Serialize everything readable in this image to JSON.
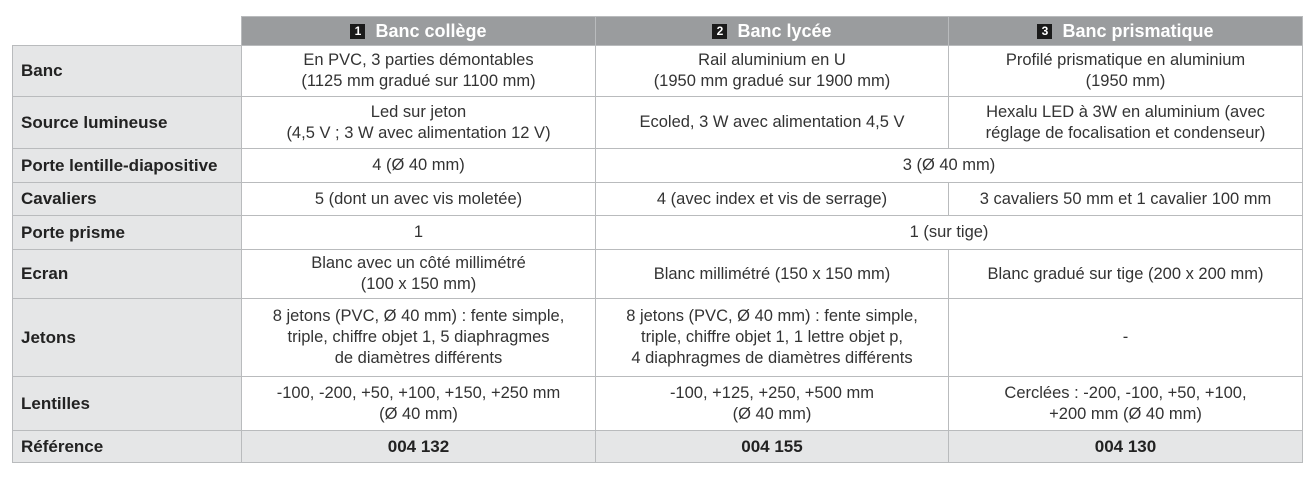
{
  "headers": [
    {
      "num": "1",
      "label": "Banc collège"
    },
    {
      "num": "2",
      "label": "Banc lycée"
    },
    {
      "num": "3",
      "label": "Banc prismatique"
    }
  ],
  "rows": {
    "banc": {
      "label": "Banc",
      "c1": [
        "En PVC, 3 parties démontables",
        "(1125 mm gradué sur 1100 mm)"
      ],
      "c2": [
        "Rail aluminium en U",
        "(1950 mm gradué sur 1900 mm)"
      ],
      "c3": [
        "Profilé prismatique en aluminium",
        "(1950 mm)"
      ]
    },
    "source": {
      "label": "Source lumineuse",
      "c1": [
        "Led sur jeton",
        "(4,5 V ; 3 W avec alimentation 12 V)"
      ],
      "c2": [
        "Ecoled, 3 W avec alimentation 4,5 V"
      ],
      "c3": [
        "Hexalu LED à 3W en aluminium (avec",
        "réglage de focalisation et condenseur)"
      ]
    },
    "porte_lentille": {
      "label": "Porte lentille-diapositive",
      "c1": [
        "4 (Ø 40 mm)"
      ],
      "c23": [
        "3 (Ø 40 mm)"
      ]
    },
    "cavaliers": {
      "label": "Cavaliers",
      "c1": [
        "5 (dont un avec vis moletée)"
      ],
      "c2": [
        "4 (avec index et vis de serrage)"
      ],
      "c3": [
        "3 cavaliers 50 mm et 1 cavalier 100 mm"
      ]
    },
    "porte_prisme": {
      "label": "Porte prisme",
      "c1": [
        "1"
      ],
      "c23": [
        "1 (sur tige)"
      ]
    },
    "ecran": {
      "label": "Ecran",
      "c1": [
        "Blanc avec un côté millimétré",
        "(100 x 150 mm)"
      ],
      "c2": [
        "Blanc millimétré (150 x 150 mm)"
      ],
      "c3": [
        "Blanc gradué sur tige (200 x 200 mm)"
      ]
    },
    "jetons": {
      "label": "Jetons",
      "c1": [
        "8 jetons (PVC, Ø 40 mm) : fente simple,",
        "triple, chiffre objet 1, 5 diaphragmes",
        "de diamètres différents"
      ],
      "c2": [
        "8 jetons (PVC, Ø 40 mm) : fente simple,",
        "triple, chiffre objet 1, 1 lettre objet p,",
        "4 diaphragmes de diamètres différents"
      ],
      "c3": [
        "-"
      ]
    },
    "lentilles": {
      "label": "Lentilles",
      "c1": [
        "-100, -200, +50, +100, +150, +250 mm",
        "(Ø 40 mm)"
      ],
      "c2": [
        "-100, +125, +250, +500 mm",
        "(Ø 40 mm)"
      ],
      "c3": [
        "Cerclées :  -200, -100, +50, +100,",
        "+200 mm  (Ø 40 mm)"
      ]
    },
    "reference": {
      "label": "Référence",
      "c1": [
        "004 132"
      ],
      "c2": [
        "004 155"
      ],
      "c3": [
        "004 130"
      ]
    }
  }
}
